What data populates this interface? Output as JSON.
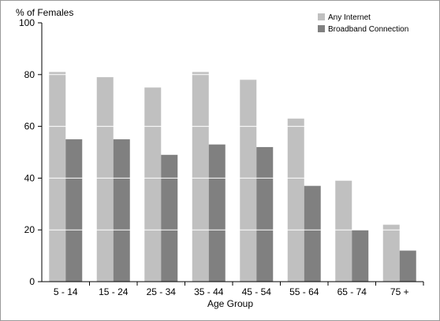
{
  "chart_data": {
    "type": "bar",
    "title": "",
    "ylabel": "% of Females",
    "xlabel": "Age Group",
    "categories": [
      "5 - 14",
      "15 - 24",
      "25 - 34",
      "35 - 44",
      "45 - 54",
      "55 - 64",
      "65 - 74",
      "75 +"
    ],
    "series": [
      {
        "name": "Any Internet",
        "color": "#c0c0c0",
        "values": [
          81,
          79,
          75,
          81,
          78,
          63,
          39,
          22
        ]
      },
      {
        "name": "Broadband Connection",
        "color": "#808080",
        "values": [
          55,
          55,
          49,
          53,
          52,
          37,
          20,
          12
        ]
      }
    ],
    "ylim": [
      0,
      100
    ],
    "yticks": [
      "0",
      "20",
      "40",
      "60",
      "80",
      "100"
    ],
    "grid": true,
    "legend_position": "top-right"
  }
}
